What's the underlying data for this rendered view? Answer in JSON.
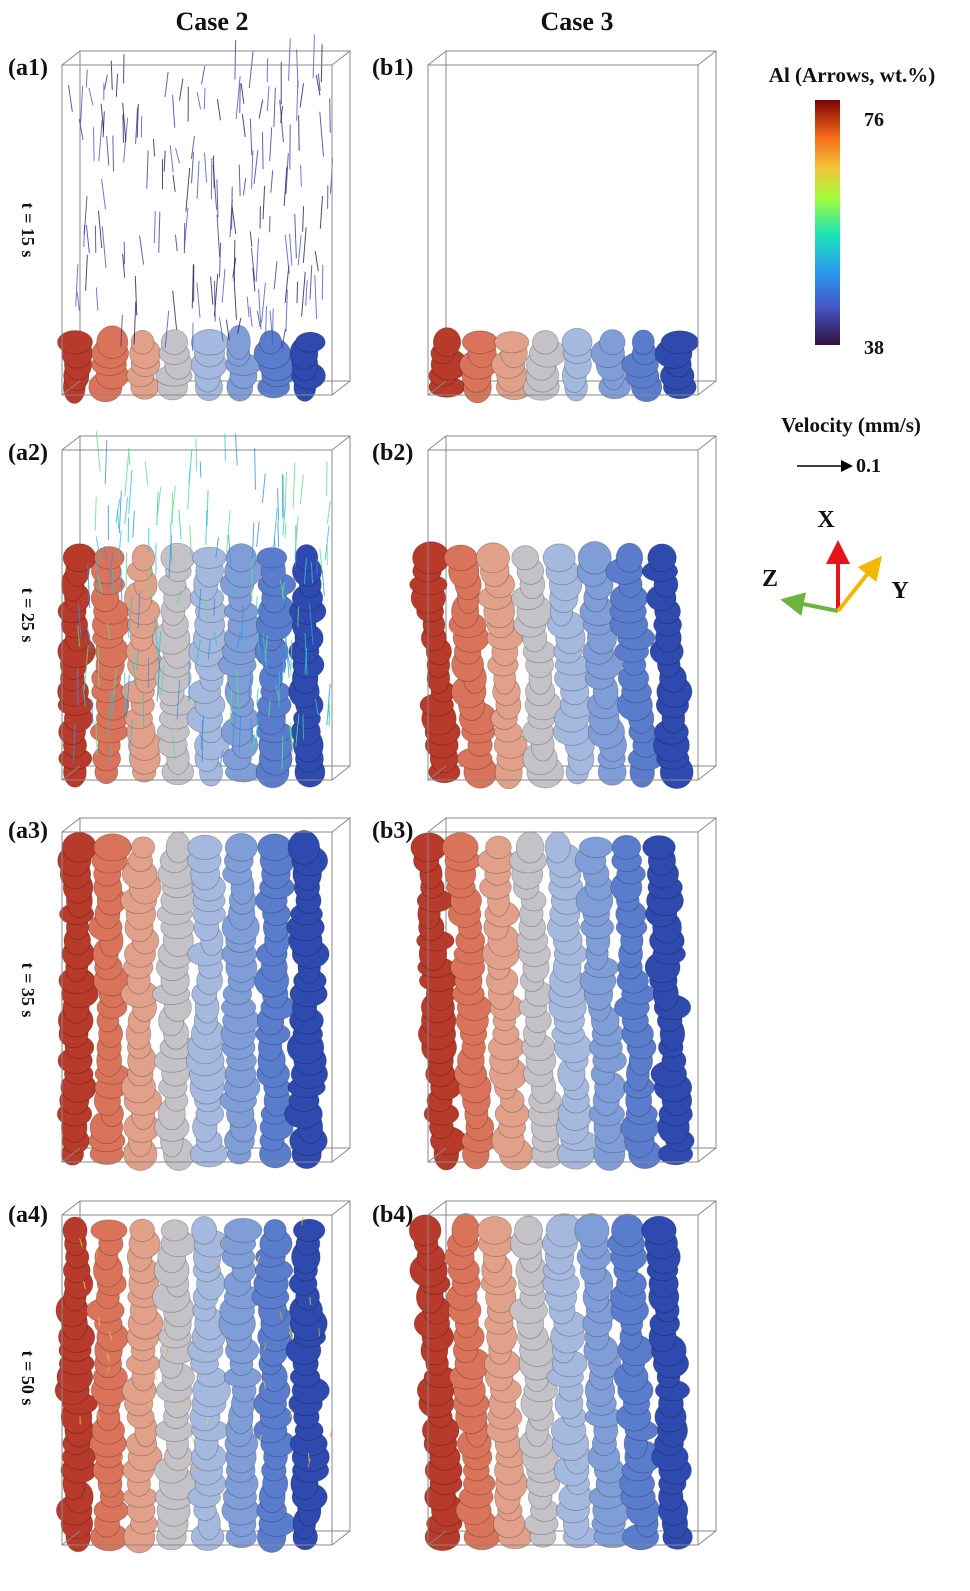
{
  "columns": [
    "Case 2",
    "Case 3"
  ],
  "panels": {
    "a": [
      "(a1)",
      "(a2)",
      "(a3)",
      "(a4)"
    ],
    "b": [
      "(b1)",
      "(b2)",
      "(b3)",
      "(b4)"
    ]
  },
  "times": [
    "t = 15 s",
    "t = 25 s",
    "t = 35 s",
    "t = 50 s"
  ],
  "colorbar": {
    "title": "Al (Arrows, wt.%)",
    "max": 76,
    "min": 38
  },
  "velocity": {
    "title": "Velocity (mm/s)",
    "value": 0.1
  },
  "axes": {
    "x": "X",
    "y": "Y",
    "z": "Z"
  }
}
